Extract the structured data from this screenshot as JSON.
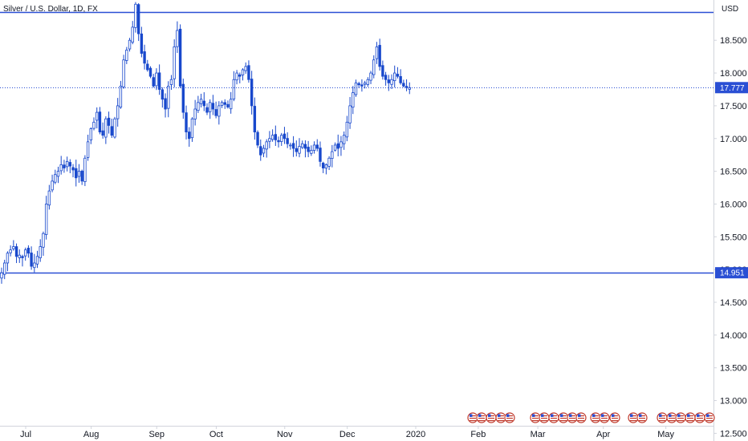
{
  "chart_data": {
    "type": "candlestick",
    "title": "Silver / U.S. Dollar, 1D, FX",
    "currency": "USD",
    "y_range": [
      12.5,
      19.0
    ],
    "y_ticks": [
      12.5,
      13.0,
      13.5,
      14.0,
      14.5,
      15.0,
      15.5,
      16.0,
      16.5,
      17.0,
      17.5,
      18.0,
      18.5
    ],
    "y_tick_labels": [
      "12.500",
      "13.000",
      "13.500",
      "14.000",
      "14.500",
      "15.000",
      "15.500",
      "16.000",
      "16.500",
      "17.000",
      "17.500",
      "18.000",
      "18.500"
    ],
    "x_months": [
      "Jul",
      "Aug",
      "Sep",
      "Oct",
      "Nov",
      "Dec",
      "2020",
      "Feb",
      "Mar",
      "Apr",
      "May"
    ],
    "x_month_day_index": [
      0,
      22,
      44,
      64,
      87,
      108,
      131,
      152,
      172,
      194,
      215
    ],
    "current_price": 17.777,
    "current_price_label": "17.777",
    "horizontal_lines": [
      {
        "value": 18.93
      },
      {
        "value": 14.951,
        "label": "14.951"
      }
    ],
    "colors": {
      "up": "#ffffff",
      "down": "#1848cc",
      "wick": "#1848cc",
      "line": "#2a4fd4",
      "badge": "#2a4fd4",
      "price_dots": "#2a4fd4"
    },
    "start_date": "2019-07-01",
    "closes": [
      14.95,
      15.1,
      15.25,
      15.3,
      15.35,
      15.2,
      15.22,
      15.18,
      15.3,
      15.25,
      15.05,
      15.1,
      15.2,
      15.35,
      15.55,
      16.0,
      16.2,
      16.35,
      16.45,
      16.5,
      16.6,
      16.55,
      16.65,
      16.58,
      16.52,
      16.4,
      16.5,
      16.35,
      16.7,
      16.95,
      17.15,
      17.25,
      17.4,
      17.1,
      17.05,
      17.3,
      17.2,
      17.05,
      17.3,
      17.5,
      17.8,
      18.2,
      18.35,
      18.5,
      18.7,
      19.05,
      18.6,
      18.3,
      18.15,
      18.05,
      17.95,
      17.8,
      18.0,
      17.75,
      17.6,
      17.45,
      17.8,
      17.9,
      18.4,
      18.65,
      17.8,
      17.4,
      17.1,
      17.0,
      17.3,
      17.45,
      17.55,
      17.6,
      17.5,
      17.4,
      17.55,
      17.45,
      17.35,
      17.5,
      17.55,
      17.52,
      17.48,
      17.6,
      17.9,
      18.0,
      17.95,
      18.05,
      18.1,
      17.9,
      17.5,
      17.1,
      16.9,
      16.75,
      16.85,
      16.95,
      17.0,
      17.05,
      16.98,
      16.95,
      17.05,
      17.0,
      16.92,
      16.9,
      16.85,
      16.8,
      16.88,
      16.92,
      16.85,
      16.8,
      16.82,
      16.9,
      16.85,
      16.65,
      16.55,
      16.6,
      16.7,
      16.8,
      16.9,
      16.85,
      16.95,
      17.05,
      17.25,
      17.5,
      17.7,
      17.85,
      17.82,
      17.8,
      17.85,
      17.9,
      18.0,
      18.2,
      18.4,
      18.1,
      17.95,
      17.9,
      17.85,
      17.9,
      18.0,
      17.95,
      17.85,
      17.8,
      17.78,
      17.777
    ]
  }
}
